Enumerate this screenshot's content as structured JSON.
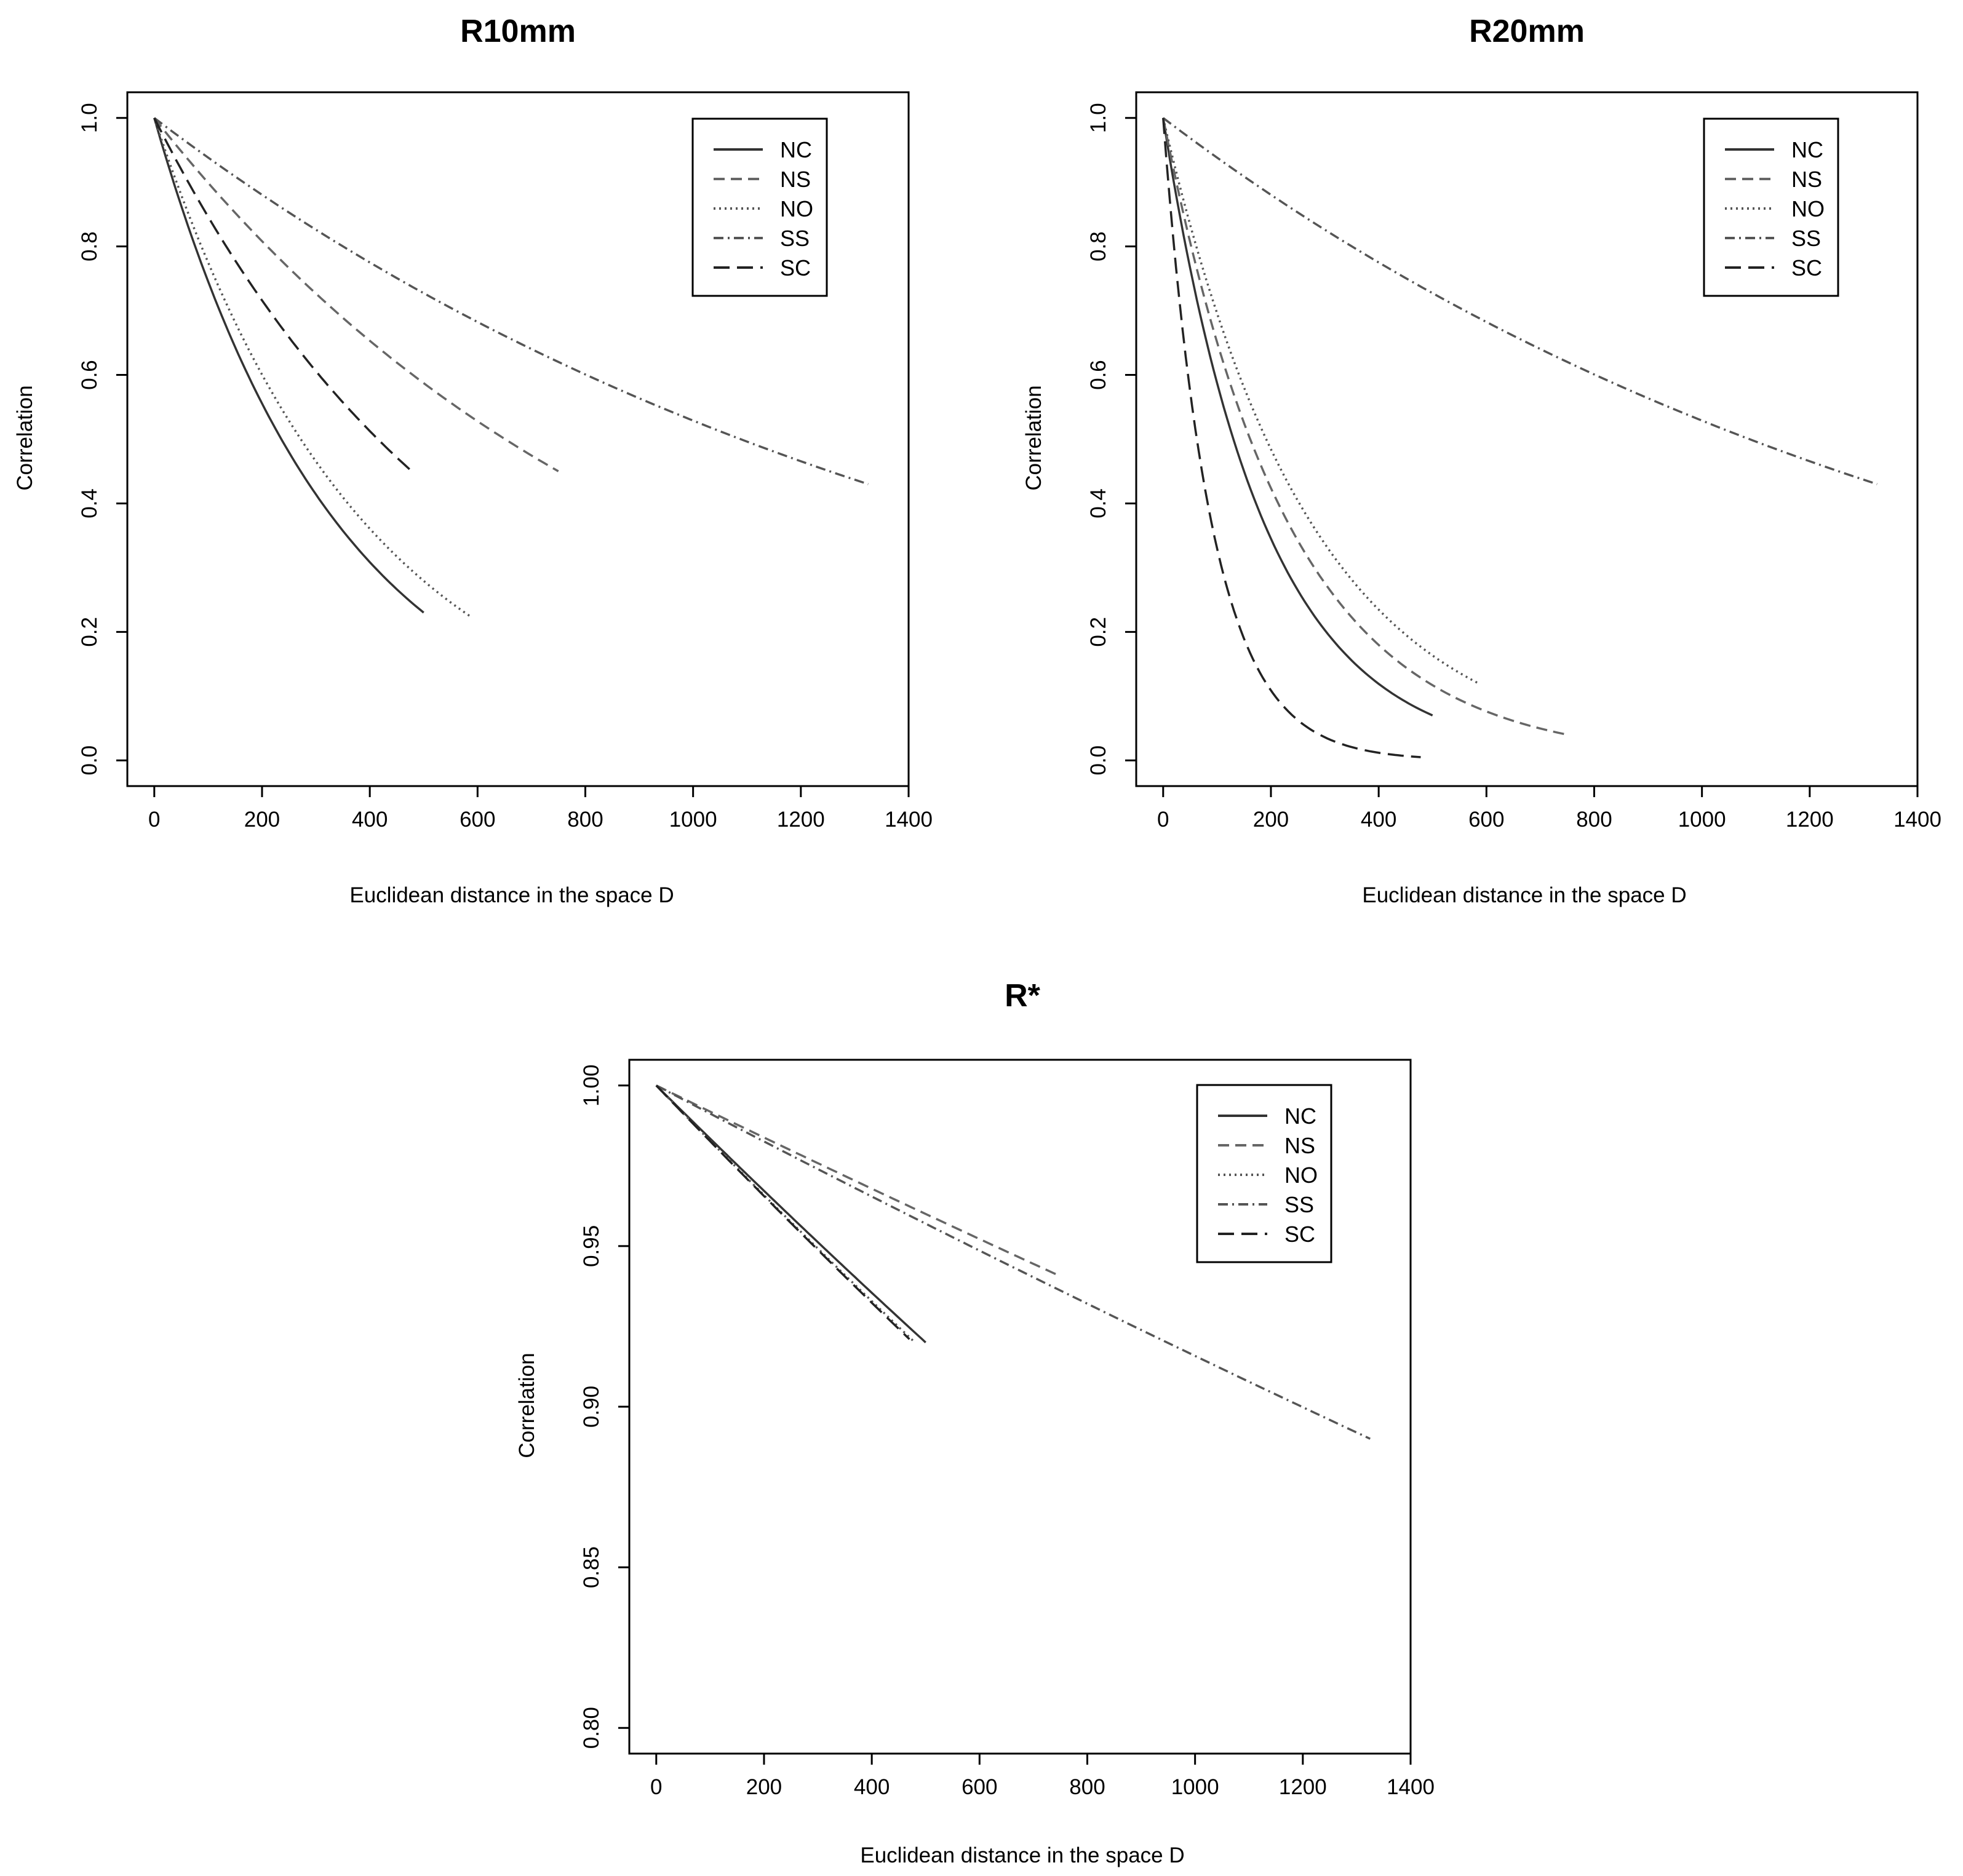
{
  "chart_data": [
    {
      "type": "line",
      "title": "R10mm",
      "xlabel": "Euclidean distance in the space D",
      "ylabel": "Correlation",
      "xlim": [
        -50,
        1400
      ],
      "ylim": [
        -0.04,
        1.04
      ],
      "xticks": [
        0,
        200,
        400,
        600,
        800,
        1000,
        1200,
        1400
      ],
      "yticks": [
        0.0,
        0.2,
        0.4,
        0.6,
        0.8,
        1.0
      ],
      "ytick_labels": [
        "0.0",
        "0.2",
        "0.4",
        "0.6",
        "0.8",
        "1.0"
      ],
      "legend": {
        "position": "top-right",
        "entries": [
          "NC",
          "NS",
          "NO",
          "SS",
          "SC"
        ]
      },
      "series": [
        {
          "name": "NC",
          "color": "#333333",
          "dash": "",
          "xmax": 500,
          "yend": 0.23
        },
        {
          "name": "NS",
          "color": "#666666",
          "dash": "18 10",
          "xmax": 750,
          "yend": 0.45
        },
        {
          "name": "NO",
          "color": "#555555",
          "dash": "3 6",
          "xmax": 585,
          "yend": 0.225
        },
        {
          "name": "SS",
          "color": "#555555",
          "dash": "16 7 3 7",
          "xmax": 1325,
          "yend": 0.43
        },
        {
          "name": "SC",
          "color": "#222222",
          "dash": "26 12",
          "xmax": 478,
          "yend": 0.45
        }
      ]
    },
    {
      "type": "line",
      "title": "R20mm",
      "xlabel": "Euclidean distance in the space D",
      "ylabel": "Correlation",
      "xlim": [
        -50,
        1400
      ],
      "ylim": [
        -0.04,
        1.04
      ],
      "xticks": [
        0,
        200,
        400,
        600,
        800,
        1000,
        1200,
        1400
      ],
      "yticks": [
        0.0,
        0.2,
        0.4,
        0.6,
        0.8,
        1.0
      ],
      "ytick_labels": [
        "0.0",
        "0.2",
        "0.4",
        "0.6",
        "0.8",
        "1.0"
      ],
      "legend": {
        "position": "top-right",
        "entries": [
          "NC",
          "NS",
          "NO",
          "SS",
          "SC"
        ]
      },
      "series": [
        {
          "name": "NC",
          "color": "#333333",
          "dash": "",
          "xmax": 500,
          "yend": 0.07
        },
        {
          "name": "NS",
          "color": "#666666",
          "dash": "18 10",
          "xmax": 750,
          "yend": 0.04
        },
        {
          "name": "NO",
          "color": "#555555",
          "dash": "3 6",
          "xmax": 585,
          "yend": 0.12
        },
        {
          "name": "SS",
          "color": "#555555",
          "dash": "16 7 3 7",
          "xmax": 1325,
          "yend": 0.43
        },
        {
          "name": "SC",
          "color": "#222222",
          "dash": "26 12",
          "xmax": 478,
          "yend": 0.005
        }
      ]
    },
    {
      "type": "line",
      "title": "R*",
      "xlabel": "Euclidean distance in the space D",
      "ylabel": "Correlation",
      "xlim": [
        -50,
        1400
      ],
      "ylim": [
        0.792,
        1.008
      ],
      "xticks": [
        0,
        200,
        400,
        600,
        800,
        1000,
        1200,
        1400
      ],
      "yticks": [
        0.8,
        0.85,
        0.9,
        0.95,
        1.0
      ],
      "ytick_labels": [
        "0.80",
        "0.85",
        "0.90",
        "0.95",
        "1.00"
      ],
      "legend": {
        "position": "top-right",
        "entries": [
          "NC",
          "NS",
          "NO",
          "SS",
          "SC"
        ]
      },
      "series": [
        {
          "name": "NC",
          "color": "#333333",
          "dash": "",
          "xmax": 500,
          "yend": 0.92
        },
        {
          "name": "NS",
          "color": "#666666",
          "dash": "18 10",
          "xmax": 745,
          "yend": 0.941
        },
        {
          "name": "NO",
          "color": "#555555",
          "dash": "3 6",
          "xmax": 480,
          "yend": 0.92
        },
        {
          "name": "SS",
          "color": "#555555",
          "dash": "16 7 3 7",
          "xmax": 1325,
          "yend": 0.89
        },
        {
          "name": "SC",
          "color": "#222222",
          "dash": "26 12",
          "xmax": 470,
          "yend": 0.921
        }
      ]
    }
  ]
}
